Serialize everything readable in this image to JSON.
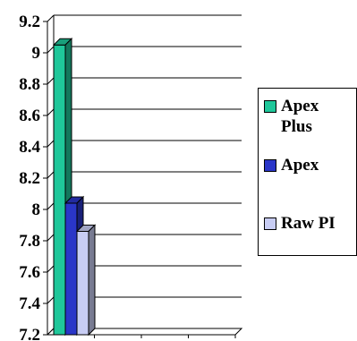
{
  "chart_data": {
    "type": "bar",
    "title": "",
    "xlabel": "",
    "ylabel": "",
    "ylim": [
      7.2,
      9.2
    ],
    "yticks": [
      "7.2",
      "7.4",
      "7.6",
      "7.8",
      "8",
      "8.2",
      "8.4",
      "8.6",
      "8.8",
      "9",
      "9.2"
    ],
    "grid": true,
    "legend_position": "right",
    "categories": [
      ""
    ],
    "series": [
      {
        "name": "Apex\nPlus",
        "values": [
          9.05
        ],
        "color": "#1fc79a"
      },
      {
        "name": "Apex",
        "values": [
          8.04
        ],
        "color": "#2a36c8"
      },
      {
        "name": "Raw PI",
        "values": [
          7.86
        ],
        "color": "#c8cdf4"
      }
    ]
  }
}
